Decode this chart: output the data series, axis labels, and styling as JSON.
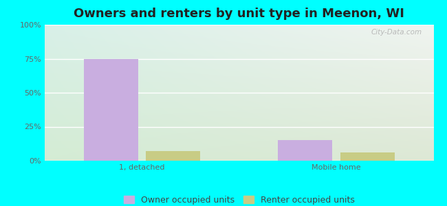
{
  "title": "Owners and renters by unit type in Meenon, WI",
  "categories": [
    "1, detached",
    "Mobile home"
  ],
  "owner_values": [
    75.0,
    15.0
  ],
  "renter_values": [
    7.0,
    6.0
  ],
  "owner_color": "#c9aee0",
  "renter_color": "#c8cc85",
  "bar_width": 0.28,
  "ylim": [
    0,
    100
  ],
  "yticks": [
    0,
    25,
    50,
    75,
    100
  ],
  "ytick_labels": [
    "0%",
    "25%",
    "50%",
    "75%",
    "100%"
  ],
  "legend_owner": "Owner occupied units",
  "legend_renter": "Renter occupied units",
  "watermark": "City-Data.com",
  "bg_tl": "#d8f0e8",
  "bg_tr": "#f0f4f0",
  "bg_bl": "#d4ecd4",
  "bg_br": "#dde8d5",
  "outer_bg": "#00ffff",
  "title_fontsize": 13,
  "tick_label_fontsize": 8,
  "legend_fontsize": 9
}
